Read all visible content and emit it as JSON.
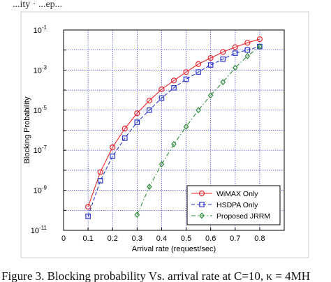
{
  "header_fragment": "...ity · ...ep...",
  "caption": "Figure 3.   Blocking probability Vs. arrival rate at C=10, κ = 4MH",
  "chart_data": {
    "type": "line",
    "title": "",
    "xlabel": "Arrival rate (request/sec)",
    "ylabel": "Blocking Probability",
    "xlim": [
      0,
      0.9
    ],
    "ylim": [
      1e-11,
      0.1
    ],
    "yscale": "log",
    "grid": true,
    "legend_position": "bottom-right",
    "x_ticks": [
      "0",
      "0.1",
      "0.2",
      "0.3",
      "0.4",
      "0.5",
      "0.6",
      "0.7",
      "0.8"
    ],
    "y_ticks": [
      {
        "base": "10",
        "exp": "-1"
      },
      {
        "base": "10",
        "exp": "-3"
      },
      {
        "base": "10",
        "exp": "-5"
      },
      {
        "base": "10",
        "exp": "-7"
      },
      {
        "base": "10",
        "exp": "-9"
      },
      {
        "base": "10",
        "exp": "-11"
      }
    ],
    "series": [
      {
        "name": "WiMAX Only",
        "color": "#e8282e",
        "marker": "circle",
        "dash": "solid",
        "x": [
          0.1,
          0.15,
          0.2,
          0.25,
          0.3,
          0.35,
          0.4,
          0.45,
          0.5,
          0.55,
          0.6,
          0.65,
          0.7,
          0.75,
          0.8
        ],
        "y": [
          1.5e-10,
          8e-09,
          1.4e-07,
          1.2e-06,
          7e-06,
          3e-05,
          0.00011,
          0.0003,
          0.0008,
          0.002,
          0.004,
          0.008,
          0.014,
          0.023,
          0.035
        ]
      },
      {
        "name": "HSDPA Only",
        "color": "#2a35c8",
        "marker": "square",
        "dash": "dashed",
        "x": [
          0.1,
          0.15,
          0.2,
          0.25,
          0.3,
          0.35,
          0.4,
          0.45,
          0.5,
          0.55,
          0.6,
          0.65,
          0.7,
          0.75,
          0.8
        ],
        "y": [
          5e-11,
          3e-09,
          5e-08,
          4e-07,
          2.5e-06,
          1e-05,
          4e-05,
          0.00013,
          0.00035,
          0.0008,
          0.0018,
          0.0035,
          0.007,
          0.01,
          0.015
        ]
      },
      {
        "name": "Proposed JRRM",
        "color": "#2e8b3a",
        "marker": "diamond",
        "dash": "dashdot",
        "x": [
          0.3,
          0.35,
          0.4,
          0.45,
          0.5,
          0.55,
          0.6,
          0.65,
          0.7,
          0.75,
          0.8
        ],
        "y": [
          6e-11,
          1.5e-09,
          2e-08,
          2e-07,
          1.5e-06,
          1e-05,
          5.5e-05,
          0.00025,
          0.0013,
          0.005,
          0.015
        ]
      }
    ]
  }
}
